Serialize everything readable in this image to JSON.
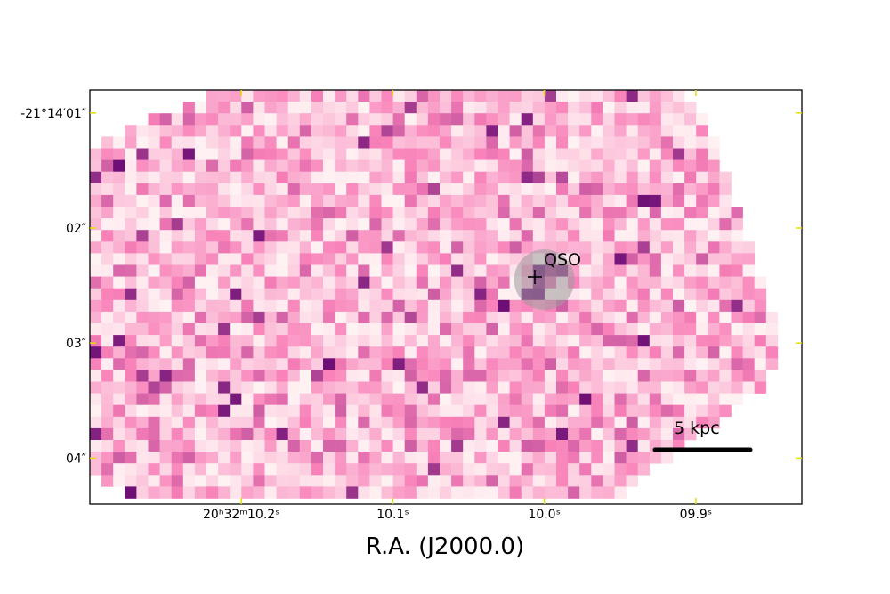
{
  "chart_data": {
    "type": "heatmap",
    "title": "",
    "xlabel": "R.A. (J2000.0)",
    "ylabel": "",
    "colormap": "RdPu",
    "grid": false,
    "x_ticks": [
      {
        "value": 10.2,
        "label": "20ʰ32ᵐ10.2ˢ"
      },
      {
        "value": 10.1,
        "label": "10.1ˢ"
      },
      {
        "value": 10.0,
        "label": "10.0ˢ"
      },
      {
        "value": 9.9,
        "label": "09.9ˢ"
      }
    ],
    "y_ticks": [
      {
        "value": 1,
        "label": "-21°14′01″"
      },
      {
        "value": 2,
        "label": "02″"
      },
      {
        "value": 3,
        "label": "03″"
      },
      {
        "value": 4,
        "label": "04″"
      }
    ],
    "xlim_seconds": [
      10.3,
      9.83
    ],
    "ylim_arcsec": [
      0.8,
      4.4
    ],
    "marker": {
      "label": "QSO",
      "ra_seconds": 10.0,
      "dec_arcsec": 2.45,
      "symbol": "+"
    },
    "scalebar": {
      "label": "5 kpc",
      "length_seconds": 0.061
    },
    "colors": {
      "low": "#fff2f3",
      "mid": "#f880b8",
      "high": "#6a0c74",
      "qso_halo": "#9a9a9a",
      "frame_ticks": "#e0e000"
    }
  }
}
